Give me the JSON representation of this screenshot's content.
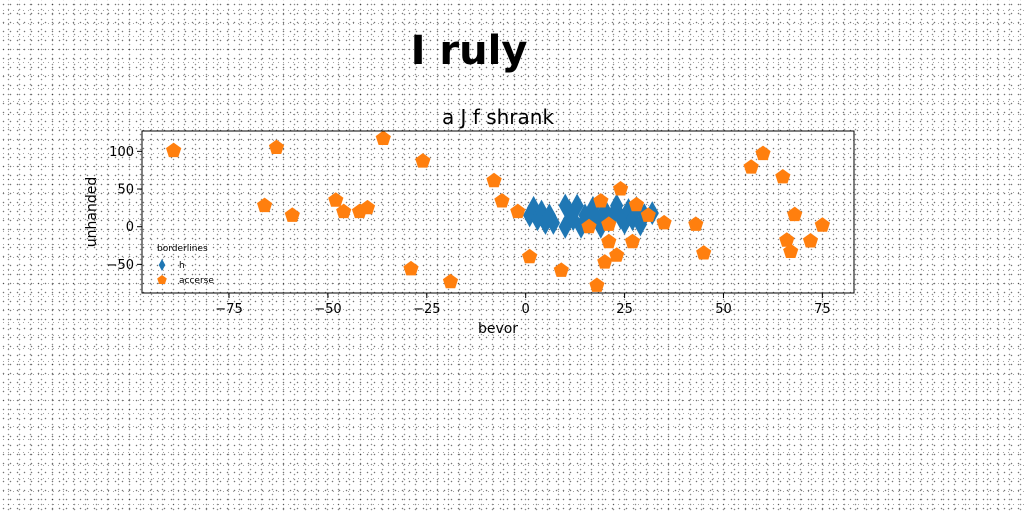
{
  "figure": {
    "title": "I ruly"
  },
  "chart_data": {
    "type": "scatter",
    "title": "a J f shrank",
    "xlabel": "bevor",
    "ylabel": "unhanded",
    "xlim": [
      -97,
      83
    ],
    "ylim": [
      -88,
      127
    ],
    "xticks": [
      -75,
      -50,
      -25,
      0,
      25,
      50,
      75
    ],
    "yticks": [
      -50,
      0,
      50,
      100
    ],
    "xtick_labels": [
      "−75",
      "−50",
      "−25",
      "0",
      "25",
      "50",
      "75"
    ],
    "ytick_labels": [
      "−50",
      "0",
      "50",
      "100"
    ],
    "grid": false,
    "legend": {
      "title": "borderlines",
      "placement": "lower-left"
    },
    "series": [
      {
        "name": "h",
        "marker": "thin-diamond",
        "color": "#1f77b4",
        "points": [
          [
            1,
            15
          ],
          [
            2,
            25
          ],
          [
            3,
            10
          ],
          [
            4,
            20
          ],
          [
            5,
            5
          ],
          [
            6,
            15
          ],
          [
            7,
            5
          ],
          [
            10,
            0
          ],
          [
            10,
            28
          ],
          [
            11,
            20
          ],
          [
            12,
            10
          ],
          [
            13,
            28
          ],
          [
            14,
            0
          ],
          [
            15,
            15
          ],
          [
            16,
            5
          ],
          [
            17,
            25
          ],
          [
            18,
            10
          ],
          [
            19,
            0
          ],
          [
            20,
            22
          ],
          [
            21,
            8
          ],
          [
            22,
            15
          ],
          [
            23,
            28
          ],
          [
            24,
            12
          ],
          [
            25,
            5
          ],
          [
            26,
            22
          ],
          [
            27,
            10
          ],
          [
            28,
            25
          ],
          [
            29,
            3
          ],
          [
            30,
            15
          ],
          [
            32,
            18
          ]
        ]
      },
      {
        "name": "accerse",
        "marker": "pentagon",
        "color": "#ff7f0e",
        "points": [
          [
            -89,
            101
          ],
          [
            -63,
            105
          ],
          [
            -66,
            28
          ],
          [
            -59,
            15
          ],
          [
            -48,
            35
          ],
          [
            -46,
            20
          ],
          [
            -42,
            20
          ],
          [
            -40,
            25
          ],
          [
            -36,
            117
          ],
          [
            -29,
            -56
          ],
          [
            -26,
            87
          ],
          [
            -19,
            -73
          ],
          [
            -8,
            61
          ],
          [
            -6,
            34
          ],
          [
            -2,
            20
          ],
          [
            1,
            -40
          ],
          [
            9,
            -58
          ],
          [
            16,
            0
          ],
          [
            18,
            -78
          ],
          [
            19,
            34
          ],
          [
            20,
            -47
          ],
          [
            21,
            3
          ],
          [
            21,
            -20
          ],
          [
            23,
            -38
          ],
          [
            24,
            50
          ],
          [
            27,
            -20
          ],
          [
            28,
            29
          ],
          [
            31,
            15
          ],
          [
            35,
            5
          ],
          [
            43,
            3
          ],
          [
            45,
            -35
          ],
          [
            57,
            79
          ],
          [
            60,
            97
          ],
          [
            65,
            66
          ],
          [
            66,
            -18
          ],
          [
            67,
            -33
          ],
          [
            68,
            16
          ],
          [
            72,
            -19
          ],
          [
            75,
            2
          ]
        ]
      }
    ]
  }
}
